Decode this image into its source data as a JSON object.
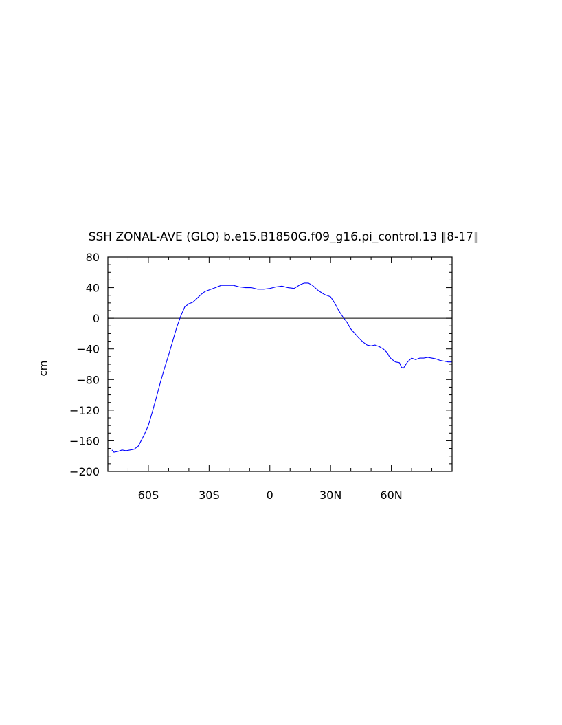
{
  "chart_data": {
    "type": "line",
    "title": "SSH ZONAL-AVE (GLO) b.e15.B1850G.f09_g16.pi_control.13 ‖8-17‖",
    "xlabel": "",
    "ylabel": "cm",
    "xlim": [
      -80,
      90
    ],
    "ylim": [
      -200,
      80
    ],
    "x_ticks": [
      -60,
      -30,
      0,
      30,
      60
    ],
    "x_tick_labels": [
      "60S",
      "30S",
      "0",
      "30N",
      "60N"
    ],
    "y_ticks": [
      80,
      40,
      0,
      -40,
      -80,
      -120,
      -160,
      -200
    ],
    "y_tick_labels": [
      "80",
      "40",
      "0",
      "−40",
      "−80",
      "−120",
      "−160",
      "−200"
    ],
    "reference_line": 0,
    "grid": false,
    "colors": {
      "series": "#0000ff",
      "axes": "#000000",
      "reference": "#000000"
    },
    "series": [
      {
        "x": [
          -78,
          -77,
          -75,
          -73,
          -71,
          -69,
          -67,
          -65,
          -64,
          -62,
          -60,
          -58,
          -56,
          -54,
          -52,
          -50,
          -48,
          -46,
          -44,
          -42,
          -40,
          -38,
          -36,
          -34,
          -32,
          -30,
          -27,
          -24,
          -21,
          -18,
          -15,
          -12,
          -9,
          -6,
          -3,
          0,
          3,
          6,
          9,
          12,
          15,
          17,
          19,
          21,
          24,
          27,
          30,
          32,
          34,
          36,
          38,
          40,
          42,
          44,
          46,
          48,
          50,
          52,
          54,
          56,
          58,
          59,
          60,
          61,
          62,
          64,
          65,
          66,
          68,
          70,
          72,
          74,
          76,
          78,
          80,
          82,
          84,
          86,
          88,
          90
        ],
        "y": [
          -172,
          -175,
          -174,
          -172,
          -173,
          -172,
          -171,
          -167,
          -162,
          -152,
          -140,
          -122,
          -103,
          -83,
          -65,
          -48,
          -30,
          -12,
          3,
          15,
          19,
          21,
          26,
          31,
          35,
          37,
          40,
          43,
          43,
          43,
          41,
          40,
          40,
          38,
          38,
          39,
          41,
          42,
          40,
          39,
          44,
          46,
          46,
          43,
          36,
          31,
          28,
          20,
          10,
          2,
          -5,
          -14,
          -20,
          -26,
          -31,
          -35,
          -36,
          -35,
          -37,
          -40,
          -45,
          -50,
          -53,
          -55,
          -57,
          -58,
          -64,
          -65,
          -57,
          -52,
          -54,
          -52,
          -52,
          -51,
          -52,
          -53,
          -55,
          -56,
          -57,
          -57
        ]
      }
    ]
  }
}
